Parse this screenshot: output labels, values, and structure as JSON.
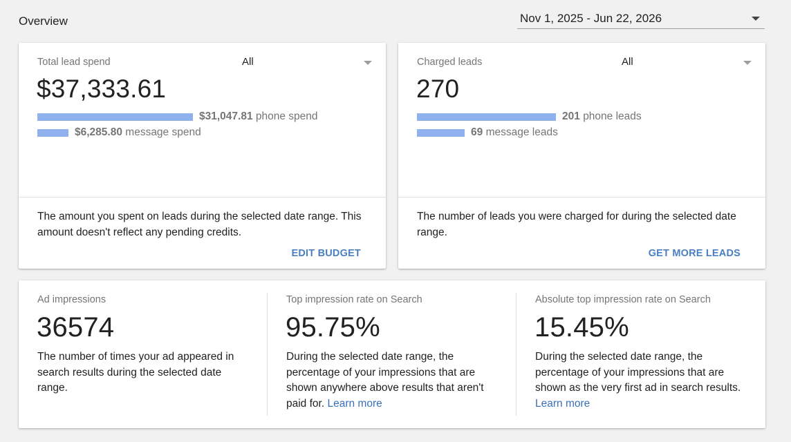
{
  "header": {
    "title": "Overview",
    "date_range": "Nov 1, 2025 - Jun 22, 2026"
  },
  "colors": {
    "bar": "#8fb2ee",
    "link": "#4a7fc1"
  },
  "spend_card": {
    "label": "Total lead spend",
    "filter_value": "All",
    "total": "$37,333.61",
    "phone_amount": "$31,047.81",
    "phone_label": "phone spend",
    "phone_share": 0.832,
    "message_amount": "$6,285.80",
    "message_label": "message spend",
    "message_share": 0.168,
    "description": "The amount you spent on leads during the selected date range. This amount doesn't reflect any pending credits.",
    "action": "EDIT BUDGET"
  },
  "leads_card": {
    "label": "Charged leads",
    "filter_value": "All",
    "total": "270",
    "phone_count": "201",
    "phone_label": "phone leads",
    "phone_share": 0.744,
    "message_count": "69",
    "message_label": "message leads",
    "message_share": 0.256,
    "description": "The number of leads you were charged for during the selected date range.",
    "action": "GET MORE LEADS"
  },
  "metrics": [
    {
      "label": "Ad impressions",
      "value": "36574",
      "description": "The number of times your ad appeared in search results during the selected date range.",
      "link": ""
    },
    {
      "label": "Top impression rate on Search",
      "value": "95.75%",
      "description": "During the selected date range, the percentage of your impressions that are shown anywhere above results that aren't paid for.",
      "link": "Learn more"
    },
    {
      "label": "Absolute top impression rate on Search",
      "value": "15.45%",
      "description": "During the selected date range, the percentage of your impressions that are shown as the very first ad in search results.",
      "link": "Learn more"
    }
  ]
}
